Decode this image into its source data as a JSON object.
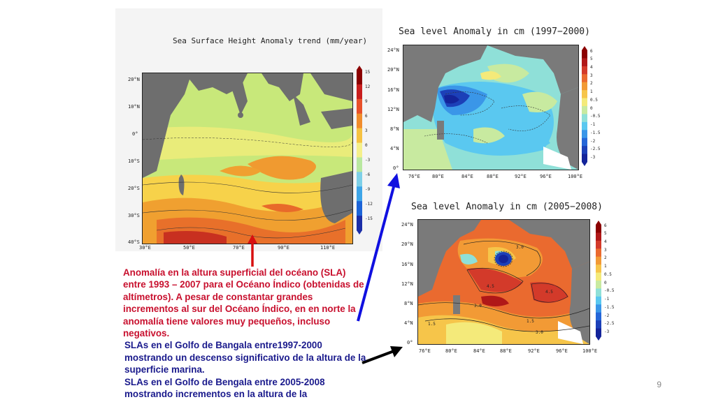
{
  "slide": {
    "page_number": "9"
  },
  "left_figure": {
    "title": "Sea Surface Height Anomaly trend (mm/year)",
    "lat_ticks": [
      "20°N",
      "10°N",
      "0°",
      "10°S",
      "20°S",
      "30°S",
      "40°S"
    ],
    "lon_ticks": [
      "30°E",
      "50°E",
      "70°E",
      "90°E",
      "110°E"
    ],
    "colorbar_ticks": [
      "15",
      "12",
      "9",
      "6",
      "3",
      "0",
      "-3",
      "-6",
      "-9",
      "-12",
      "-15"
    ],
    "colorbar_colors": [
      "#8b0000",
      "#c81e1e",
      "#e8502a",
      "#f08c2c",
      "#f6c242",
      "#f5f08a",
      "#b9e8a0",
      "#7ed0e8",
      "#3ea5e8",
      "#1c64d8",
      "#1b2ea8"
    ]
  },
  "top_right_figure": {
    "title": "Sea level Anomaly in cm (1997−2000)",
    "lat_ticks": [
      "24°N",
      "20°N",
      "16°N",
      "12°N",
      "8°N",
      "4°N",
      "0°"
    ],
    "lon_ticks": [
      "76°E",
      "80°E",
      "84°E",
      "88°E",
      "92°E",
      "96°E",
      "100°E"
    ],
    "colorbar_ticks": [
      "6",
      "5",
      "4",
      "3",
      "2",
      "1",
      "0.5",
      "0",
      "-0.5",
      "-1",
      "-1.5",
      "-2",
      "-2.5",
      "-3"
    ]
  },
  "bottom_right_figure": {
    "title": "Sea level Anomaly in cm (2005−2008)",
    "lat_ticks": [
      "24°N",
      "20°N",
      "16°N",
      "12°N",
      "8°N",
      "4°N",
      "0°"
    ],
    "lon_ticks": [
      "76°E",
      "80°E",
      "84°E",
      "88°E",
      "92°E",
      "96°E",
      "100°E"
    ],
    "colorbar_ticks": [
      "6",
      "5",
      "4",
      "3",
      "2",
      "1",
      "0.5",
      "0",
      "-0.5",
      "-1",
      "-1.5",
      "-2",
      "-2.5",
      "-3"
    ],
    "contour_labels": [
      "3.0",
      "4.5",
      "1.5",
      "1.5",
      "3.0",
      "4.5",
      "3.0"
    ]
  },
  "colorbar_small_colors": [
    "#8b0000",
    "#b01818",
    "#d33a2a",
    "#ea6a2f",
    "#f29a35",
    "#f6c54a",
    "#f4ea7a",
    "#c8eaa0",
    "#8fe0d8",
    "#5ac8f0",
    "#3a96e8",
    "#2566d8",
    "#1c40b8",
    "#14249a"
  ],
  "caption": {
    "para1": "Anomalía en la altura superficial del océano (SLA)  entre 1993 – 2007 para el Océano Índico (obtenidas de altímetros).  A pesar de constantar grandes incrementos al sur del Océano Índico, en en norte la anomalía tiene valores muy pequeños, incluso negativos.",
    "para2": "SLAs en el Golfo de Bangala  entre1997-2000 mostrando un  descenso significativo de la altura de la superficie marina.",
    "para3": "SLAs en el Golfo de Bengala entre 2005-2008 mostrando incrementos en la altura de la"
  }
}
